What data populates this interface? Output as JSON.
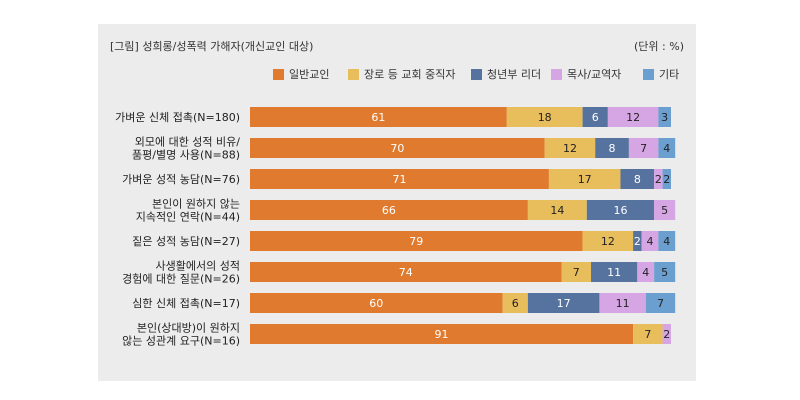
{
  "header": {
    "title": "[그림] 성희롱/성폭력 가해자(개신교인 대상)",
    "unit": "(단위 : %)"
  },
  "chart_data": {
    "type": "bar",
    "orientation": "horizontal",
    "stacked": true,
    "xlim": [
      0,
      100
    ],
    "legend_position": "top",
    "grid": false,
    "categories": [
      [
        "가벼운 신체 접촉(N=180)"
      ],
      [
        "외모에 대한 성적 비유/",
        "품평/별명 사용(N=88)"
      ],
      [
        "가벼운 성적 농담(N=76)"
      ],
      [
        "본인이 원하지 않는",
        "지속적인 연락(N=44)"
      ],
      [
        "짙은 성적 농담(N=27)"
      ],
      [
        "사생활에서의 성적",
        "경험에 대한 질문(N=26)"
      ],
      [
        "심한 신체 접촉(N=17)"
      ],
      [
        "본인(상대방)이 원하지",
        "않는 성관계 요구(N=16)"
      ]
    ],
    "series": [
      {
        "name": "일반교인",
        "color": "#e07a2e",
        "values": [
          61,
          70,
          71,
          66,
          79,
          74,
          60,
          91
        ]
      },
      {
        "name": "장로 등 교회 중직자",
        "color": "#e8bd5c",
        "values": [
          18,
          12,
          17,
          14,
          12,
          7,
          6,
          7
        ]
      },
      {
        "name": "청년부 리더",
        "color": "#56729f",
        "values": [
          6,
          8,
          8,
          16,
          2,
          11,
          17,
          0
        ]
      },
      {
        "name": "목사/교역자",
        "color": "#d6a6e4",
        "values": [
          12,
          7,
          2,
          5,
          4,
          4,
          11,
          2
        ]
      },
      {
        "name": "기타",
        "color": "#6b9fd0",
        "values": [
          3,
          4,
          2,
          0,
          4,
          5,
          7,
          0
        ]
      }
    ]
  }
}
